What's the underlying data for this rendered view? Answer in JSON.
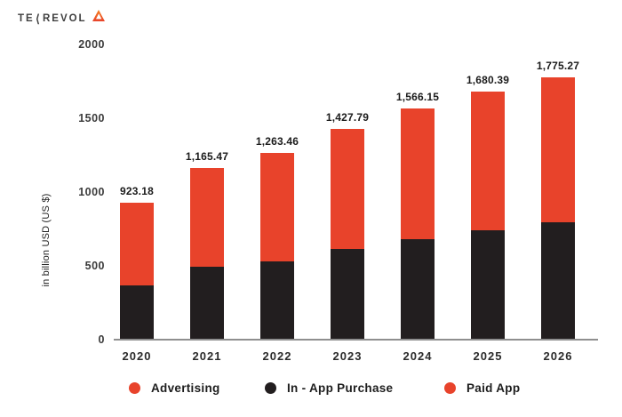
{
  "logo": {
    "prefix": "TE",
    "k_glyph": "⟨",
    "suffix": "REVOL",
    "triangle_color_top": "#F6821F",
    "triangle_color_bottom": "#E8432B"
  },
  "colors": {
    "accent_red": "#E8432B",
    "series_black": "#221E1F",
    "axis_gray": "#8F8F8F",
    "text_dark": "#1A1A1A"
  },
  "chart_data": {
    "type": "bar",
    "stacked": true,
    "title": "",
    "categories": [
      "2020",
      "2021",
      "2022",
      "2023",
      "2024",
      "2025",
      "2026"
    ],
    "totals": [
      923.18,
      1165.47,
      1263.46,
      1427.79,
      1566.15,
      1680.39,
      1775.27
    ],
    "total_labels": [
      "923.18",
      "1,165.47",
      "1,263.46",
      "1,427.79",
      "1,566.15",
      "1,680.39",
      "1,775.27"
    ],
    "series": [
      {
        "name": "In - App Purchase",
        "color": "#221E1F",
        "values": [
          365,
          495,
          530,
          615,
          680,
          740,
          795
        ]
      },
      {
        "name": "Advertising + Paid App",
        "color": "#E8432B",
        "values": [
          558.18,
          670.47,
          733.46,
          812.79,
          886.15,
          940.39,
          980.27
        ]
      }
    ],
    "xlabel": "",
    "ylabel": "in billion USD (US $)",
    "yticks": [
      0,
      500,
      1000,
      1500,
      2000
    ],
    "ylim": [
      0,
      2000
    ],
    "grid": false,
    "legend": {
      "position": "bottom",
      "items": [
        {
          "label": "Advertising",
          "color": "#E8432B"
        },
        {
          "label": "In - App Purchase",
          "color": "#221E1F"
        },
        {
          "label": "Paid App",
          "color": "#E8432B"
        }
      ]
    }
  }
}
